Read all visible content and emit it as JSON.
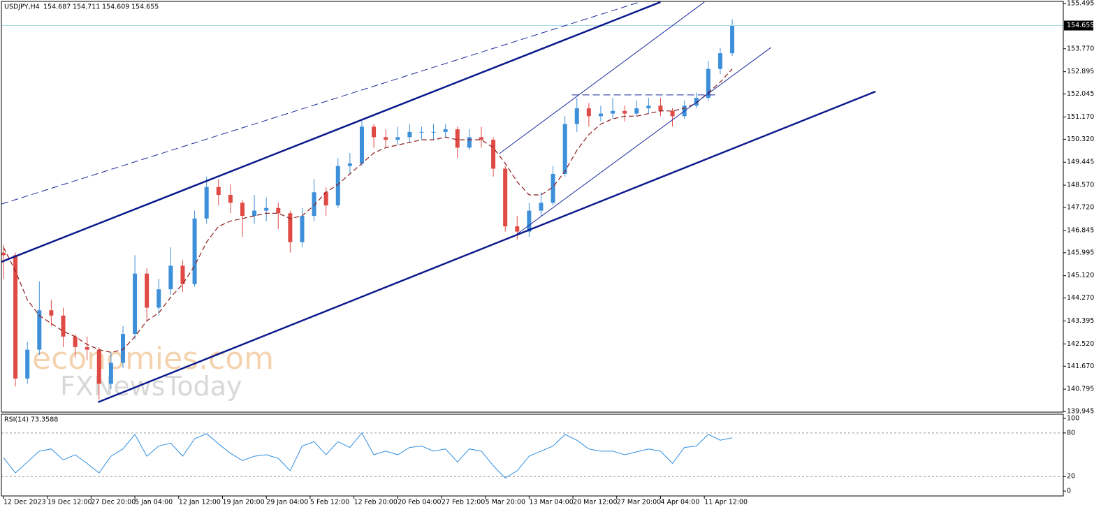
{
  "chart_data": [
    {
      "type": "candlestick",
      "header": {
        "symbol": "USDJPY,H4",
        "open": 154.687,
        "high": 154.711,
        "low": 154.609,
        "close": 154.655
      },
      "watermark": [
        "economies.com",
        "FXNewsToday"
      ],
      "up_color": "#3d8fd9",
      "down_color": "#e04a45",
      "x": [
        0,
        12,
        24,
        36,
        48,
        60,
        72,
        84,
        96,
        108,
        120,
        132,
        144,
        156,
        168,
        180,
        192,
        204,
        216,
        228,
        240,
        252,
        264,
        276,
        288,
        300,
        312,
        324,
        336,
        348,
        360,
        372,
        384,
        396,
        408,
        420,
        432,
        444,
        456,
        468,
        480,
        492,
        504,
        516,
        528,
        540,
        552,
        564,
        576,
        588,
        600,
        612,
        624,
        636,
        648,
        660,
        672,
        684,
        696,
        708,
        720,
        732
      ],
      "open": [
        146.0,
        145.9,
        141.2,
        142.3,
        143.8,
        143.6,
        142.8,
        142.4,
        142.3,
        141.0,
        141.8,
        142.9,
        145.2,
        143.9,
        144.6,
        145.5,
        144.8,
        147.3,
        148.5,
        148.2,
        147.9,
        147.4,
        147.6,
        147.7,
        147.5,
        146.4,
        147.4,
        148.3,
        147.8,
        149.3,
        149.4,
        150.8,
        150.4,
        150.3,
        150.4,
        150.6,
        150.6,
        150.6,
        150.7,
        150.0,
        150.4,
        150.3,
        149.2,
        147.0,
        146.8,
        147.6,
        147.9,
        149.0,
        150.9,
        151.5,
        151.2,
        151.3,
        151.4,
        151.3,
        151.5,
        151.6,
        151.4,
        151.2,
        151.6,
        151.9,
        153.0,
        153.6
      ],
      "high": [
        146.3,
        146.0,
        142.6,
        144.9,
        144.2,
        143.9,
        142.9,
        142.8,
        142.4,
        142.2,
        143.2,
        145.9,
        145.4,
        145.0,
        146.2,
        145.7,
        147.6,
        148.9,
        148.8,
        148.6,
        148.0,
        148.2,
        148.1,
        147.9,
        147.6,
        147.7,
        148.8,
        148.5,
        149.6,
        149.8,
        151.0,
        150.9,
        150.7,
        150.8,
        150.9,
        150.8,
        150.9,
        150.9,
        150.8,
        150.7,
        150.8,
        150.4,
        149.3,
        147.4,
        147.9,
        148.3,
        149.3,
        151.2,
        151.9,
        151.7,
        151.6,
        151.9,
        151.6,
        151.8,
        151.9,
        151.9,
        151.5,
        151.8,
        152.1,
        153.3,
        153.8,
        154.9
      ],
      "low": [
        145.0,
        140.9,
        141.0,
        142.1,
        143.2,
        142.4,
        142.0,
        141.9,
        140.4,
        140.8,
        141.6,
        142.7,
        143.4,
        143.6,
        144.4,
        144.5,
        144.7,
        147.1,
        147.8,
        147.5,
        146.6,
        147.1,
        147.2,
        146.9,
        146.0,
        146.2,
        147.2,
        147.4,
        147.7,
        149.0,
        149.3,
        150.0,
        150.0,
        150.1,
        150.2,
        150.3,
        150.3,
        150.4,
        149.6,
        149.9,
        150.0,
        148.9,
        146.8,
        146.5,
        146.6,
        147.4,
        147.8,
        148.9,
        150.6,
        150.8,
        151.0,
        151.1,
        151.0,
        151.2,
        151.3,
        151.2,
        150.8,
        151.1,
        151.5,
        151.8,
        152.8,
        153.5
      ],
      "close": [
        145.9,
        141.2,
        142.3,
        143.8,
        143.6,
        142.8,
        142.4,
        142.3,
        141.0,
        141.8,
        142.9,
        145.2,
        143.9,
        144.6,
        145.5,
        144.8,
        147.3,
        148.5,
        148.2,
        147.9,
        147.4,
        147.6,
        147.7,
        147.5,
        146.4,
        147.4,
        148.3,
        147.8,
        149.3,
        149.4,
        150.8,
        150.4,
        150.3,
        150.4,
        150.6,
        150.6,
        150.6,
        150.7,
        150.0,
        150.4,
        150.3,
        149.2,
        147.0,
        146.8,
        147.6,
        147.9,
        149.0,
        150.9,
        151.5,
        151.2,
        151.3,
        151.4,
        151.3,
        151.5,
        151.6,
        151.4,
        151.2,
        151.6,
        151.9,
        153.0,
        153.6,
        154.655
      ],
      "ma": {
        "color": "#8b1a1a",
        "values": [
          146.2,
          145.3,
          144.2,
          143.6,
          143.3,
          143.0,
          142.8,
          142.5,
          142.3,
          142.2,
          142.3,
          142.8,
          143.4,
          143.7,
          144.3,
          144.8,
          145.5,
          146.4,
          147.0,
          147.2,
          147.3,
          147.4,
          147.5,
          147.5,
          147.3,
          147.4,
          147.8,
          148.3,
          148.6,
          149.0,
          149.4,
          149.8,
          150.0,
          150.1,
          150.2,
          150.3,
          150.3,
          150.4,
          150.3,
          150.3,
          150.3,
          150.0,
          149.4,
          148.7,
          148.2,
          148.2,
          148.5,
          149.1,
          149.9,
          150.5,
          150.9,
          151.1,
          151.2,
          151.2,
          151.3,
          151.4,
          151.4,
          151.5,
          151.7,
          152.1,
          152.5,
          153.0
        ]
      },
      "lines": [
        {
          "x": [
            -2,
            660
          ],
          "y": [
            145.65,
            155.55
          ],
          "style": "thick",
          "color": "#0a1a8c"
        },
        {
          "x": [
            95,
            876
          ],
          "y": [
            140.3,
            152.14
          ],
          "style": "thick",
          "color": "#0a1a8c"
        },
        {
          "x": [
            -2,
            639
          ],
          "y": [
            147.85,
            155.55
          ],
          "style": "dashed",
          "color": "#1a2a9c"
        },
        {
          "x": [
            498,
            704
          ],
          "y": [
            149.77,
            155.55
          ],
          "style": "thin",
          "color": "#1a2a9c"
        },
        {
          "x": [
            516,
            771
          ],
          "y": [
            146.71,
            153.82
          ],
          "style": "thin",
          "color": "#1a2a9c"
        },
        {
          "x": [
            571,
            716
          ],
          "y": [
            152.01,
            152.01
          ],
          "style": "dashed",
          "color": "#1a2a9c"
        }
      ],
      "current_price": 154.655,
      "current_price_color": "#a9dbe8",
      "xlim": [
        -2.1,
        1064.6
      ],
      "ylim": [
        139.92,
        155.575
      ],
      "yticks": [
        155.495,
        153.77,
        152.895,
        152.045,
        151.17,
        150.32,
        149.445,
        148.57,
        147.72,
        146.845,
        145.995,
        145.12,
        144.27,
        143.395,
        142.52,
        141.67,
        140.795,
        139.945
      ],
      "ytick_labels": [
        "155.495",
        "153.770",
        "152.895",
        "152.045",
        "151.170",
        "150.320",
        "149.445",
        "148.570",
        "147.720",
        "146.845",
        "145.995",
        "145.120",
        "144.270",
        "143.395",
        "142.520",
        "141.670",
        "140.795",
        "139.945"
      ]
    },
    {
      "type": "line",
      "title": "RSI(14)",
      "color": "#2f8ee0",
      "x": [
        0,
        12,
        24,
        36,
        48,
        60,
        72,
        84,
        96,
        108,
        120,
        132,
        144,
        156,
        168,
        180,
        192,
        204,
        216,
        228,
        240,
        252,
        264,
        276,
        288,
        300,
        312,
        324,
        336,
        348,
        360,
        372,
        384,
        396,
        408,
        420,
        432,
        444,
        456,
        468,
        480,
        492,
        504,
        516,
        528,
        540,
        552,
        564,
        576,
        588,
        600,
        612,
        624,
        636,
        648,
        660,
        672,
        684,
        696,
        708,
        720,
        732
      ],
      "values": [
        46,
        25,
        40,
        55,
        58,
        43,
        50,
        38,
        25,
        48,
        58,
        78,
        48,
        62,
        66,
        48,
        72,
        79,
        65,
        52,
        42,
        48,
        50,
        45,
        28,
        62,
        68,
        50,
        68,
        60,
        80,
        50,
        55,
        50,
        60,
        62,
        55,
        58,
        40,
        58,
        55,
        35,
        18,
        28,
        48,
        55,
        62,
        78,
        70,
        58,
        55,
        55,
        50,
        54,
        58,
        55,
        38,
        60,
        62,
        78,
        70,
        73.3588
      ],
      "levels": [
        80,
        20
      ],
      "xlim": [
        -2.1,
        1064.6
      ],
      "ylim": [
        -6.7,
        105.8
      ],
      "yticks": [
        100,
        80,
        20,
        0
      ],
      "xticks": [
        {
          "value": 0,
          "label": "12 Dec 2023"
        },
        {
          "value": 44,
          "label": "19 Dec 12:00"
        },
        {
          "value": 88,
          "label": "27 Dec 20:00"
        },
        {
          "value": 132,
          "label": "5 Jan 04:00"
        },
        {
          "value": 176,
          "label": "12 Jan 12:00"
        },
        {
          "value": 220,
          "label": "19 Jan 20:00"
        },
        {
          "value": 264,
          "label": "29 Jan 04:00"
        },
        {
          "value": 308,
          "label": "5 Feb 12:00"
        },
        {
          "value": 352,
          "label": "12 Feb 20:00"
        },
        {
          "value": 396,
          "label": "20 Feb 04:00"
        },
        {
          "value": 440,
          "label": "27 Feb 12:00"
        },
        {
          "value": 484,
          "label": "5 Mar 20:00"
        },
        {
          "value": 528,
          "label": "13 Mar 04:00"
        },
        {
          "value": 572,
          "label": "20 Mar 12:00"
        },
        {
          "value": 616,
          "label": "27 Mar 20:00"
        },
        {
          "value": 660,
          "label": "4 Apr 04:00"
        },
        {
          "value": 704,
          "label": "11 Apr 12:00"
        }
      ]
    }
  ]
}
